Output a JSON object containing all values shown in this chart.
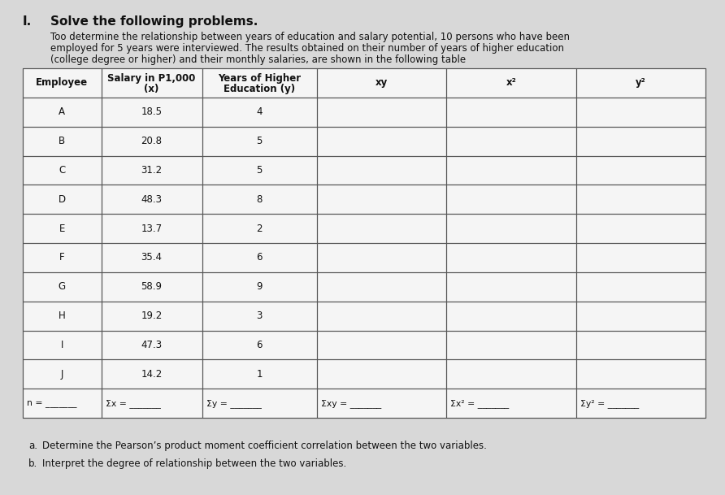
{
  "title_number": "I.",
  "title_text": "Solve the following problems.",
  "paragraph_line1": "Too determine the relationship between years of education and salary potential, 10 persons who have been",
  "paragraph_line2": "employed for 5 years were interviewed. The results obtained on their number of years of higher education",
  "paragraph_line3": "(college degree or higher) and their monthly salaries, are shown in the following table",
  "employees": [
    "A",
    "B",
    "C",
    "D",
    "E",
    "F",
    "G",
    "H",
    "I",
    "J"
  ],
  "salary_x": [
    "18.5",
    "20.8",
    "31.2",
    "48.3",
    "13.7",
    "35.4",
    "58.9",
    "19.2",
    "47.3",
    "14.2"
  ],
  "education_y": [
    "4",
    "5",
    "5",
    "8",
    "2",
    "6",
    "9",
    "3",
    "6",
    "1"
  ],
  "col0_header": "Employee",
  "col1_header_line1": "Salary in P1,000",
  "col1_header_line2": "(x)",
  "col2_header_line1": "Years of Higher",
  "col2_header_line2": "Education (y)",
  "col3_header": "xy",
  "col4_header": "x²",
  "col5_header": "y²",
  "summary_col0": "n =",
  "summary_col1": "Σx =",
  "summary_col2": "Σy =",
  "summary_col3": "Σxy =",
  "summary_col4": "Σx² =",
  "summary_col5": "Σy² =",
  "question_a_label": "a.",
  "question_a_text": "Determine the Pearson’s product moment coefficient correlation between the two variables.",
  "question_b_label": "b.",
  "question_b_text": "Interpret the degree of relationship between the two variables.",
  "bg_color": "#d8d8d8",
  "table_bg": "#e8e8e8",
  "cell_bg": "#f5f5f5",
  "border_color": "#555555",
  "text_color": "#111111"
}
